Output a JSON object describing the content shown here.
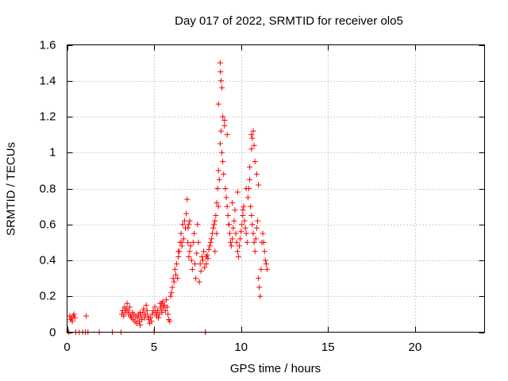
{
  "chart_data": {
    "type": "scatter",
    "title": "Day 017 of 2022, SRMTID for receiver olo5",
    "xlabel": "GPS time / hours",
    "ylabel": "SRMTID / TECUs",
    "xlim": [
      0,
      24
    ],
    "ylim": [
      0,
      1.6
    ],
    "x_ticks": [
      0,
      5,
      10,
      15,
      20
    ],
    "x_tick_labels": [
      "0",
      "5",
      "10",
      "15",
      "20"
    ],
    "y_ticks": [
      0,
      0.2,
      0.4,
      0.6,
      0.8,
      1.0,
      1.2,
      1.4,
      1.6
    ],
    "y_tick_labels": [
      "0",
      "0.2",
      "0.4",
      "0.6",
      "0.8",
      "1",
      "1.2",
      "1.4",
      "1.6"
    ],
    "grid": true,
    "marker": "+",
    "color": "#ff0000",
    "series": [
      {
        "name": "olo5",
        "x": [
          0.15,
          0.2,
          0.25,
          0.3,
          0.35,
          0.4,
          0.45,
          0.1,
          0.5,
          0.7,
          0.9,
          1.05,
          1.1,
          1.2,
          1.85,
          3.1,
          3.15,
          3.2,
          3.25,
          3.3,
          3.35,
          3.4,
          3.45,
          3.5,
          3.55,
          3.6,
          3.65,
          3.7,
          3.75,
          3.8,
          3.85,
          3.9,
          3.95,
          4.0,
          4.05,
          4.1,
          4.15,
          4.2,
          4.25,
          4.3,
          4.35,
          4.4,
          4.45,
          4.5,
          4.55,
          4.6,
          4.65,
          4.7,
          4.75,
          4.8,
          4.85,
          4.9,
          4.95,
          5.0,
          5.05,
          5.1,
          5.15,
          5.2,
          5.25,
          5.3,
          5.35,
          5.4,
          5.45,
          5.5,
          5.55,
          5.6,
          5.65,
          5.7,
          5.75,
          5.8,
          5.85,
          5.9,
          5.95,
          6.0,
          6.05,
          6.1,
          6.15,
          6.2,
          6.25,
          6.3,
          6.35,
          6.4,
          6.45,
          6.5,
          6.55,
          6.6,
          6.65,
          6.7,
          6.75,
          6.8,
          6.85,
          6.9,
          6.95,
          7.0,
          7.05,
          7.1,
          7.15,
          7.2,
          7.25,
          7.3,
          7.35,
          7.4,
          7.45,
          7.5,
          7.55,
          7.6,
          7.65,
          7.7,
          7.75,
          7.8,
          7.85,
          7.9,
          7.95,
          8.0,
          8.05,
          8.1,
          8.15,
          8.2,
          8.25,
          8.3,
          8.35,
          8.4,
          8.45,
          8.5,
          8.55,
          8.6,
          8.65,
          8.7,
          8.75,
          8.8,
          8.85,
          8.9,
          8.95,
          9.0,
          9.05,
          9.1,
          9.15,
          9.2,
          9.25,
          9.3,
          9.35,
          9.4,
          9.45,
          9.5,
          9.55,
          9.6,
          9.65,
          9.7,
          9.75,
          9.8,
          9.85,
          9.9,
          9.95,
          10.0,
          10.05,
          10.1,
          10.15,
          10.2,
          10.25,
          10.3,
          10.35,
          10.4,
          10.45,
          10.5,
          10.55,
          10.6,
          10.65,
          10.7,
          10.75,
          10.8,
          10.85,
          10.9,
          10.95,
          11.0,
          11.05,
          11.1,
          11.15,
          11.2,
          11.25,
          11.3,
          11.35,
          11.4,
          11.45,
          11.5,
          8.8,
          8.82,
          8.85,
          8.9,
          8.7,
          8.95,
          9.05,
          9.2,
          10.6,
          10.7,
          10.65,
          10.75,
          10.5,
          10.8,
          10.9,
          11.0,
          8.5,
          8.6,
          8.7,
          9.3,
          9.5,
          9.8,
          10.1,
          10.3,
          6.95,
          7.0,
          7.05,
          6.4,
          6.6,
          10.6,
          5.4,
          5.45,
          7.95,
          8.0,
          2.6,
          4.2
        ],
        "y": [
          0.09,
          0.07,
          0.08,
          0.06,
          0.09,
          0.1,
          0.08,
          0.0,
          0.0,
          0.0,
          0.0,
          0.0,
          0.09,
          0.0,
          0.0,
          0.0,
          0.1,
          0.12,
          0.09,
          0.14,
          0.11,
          0.13,
          0.16,
          0.12,
          0.1,
          0.14,
          0.09,
          0.08,
          0.11,
          0.07,
          0.1,
          0.06,
          0.09,
          0.05,
          0.08,
          0.1,
          0.06,
          0.04,
          0.09,
          0.07,
          0.11,
          0.13,
          0.08,
          0.1,
          0.15,
          0.12,
          0.09,
          0.07,
          0.05,
          0.08,
          0.06,
          0.1,
          0.12,
          0.0,
          0.14,
          0.11,
          0.09,
          0.12,
          0.08,
          0.1,
          0.16,
          0.13,
          0.11,
          0.17,
          0.14,
          0.15,
          0.12,
          0.18,
          0.14,
          0.1,
          0.07,
          0.06,
          0.2,
          0.22,
          0.25,
          0.3,
          0.28,
          0.35,
          0.32,
          0.38,
          0.3,
          0.42,
          0.45,
          0.5,
          0.55,
          0.48,
          0.6,
          0.52,
          0.62,
          0.58,
          0.66,
          0.74,
          0.5,
          0.42,
          0.45,
          0.48,
          0.4,
          0.35,
          0.5,
          0.55,
          0.38,
          0.3,
          0.44,
          0.6,
          0.5,
          0.28,
          0.38,
          0.34,
          0.42,
          0.4,
          0.45,
          0.36,
          0.0,
          0.38,
          0.43,
          0.41,
          0.46,
          0.48,
          0.5,
          0.52,
          0.55,
          0.58,
          0.6,
          0.45,
          0.65,
          0.72,
          0.8,
          0.9,
          0.85,
          1.05,
          1.12,
          1.0,
          0.95,
          0.88,
          1.18,
          0.8,
          0.75,
          0.7,
          0.65,
          0.6,
          0.55,
          0.5,
          0.48,
          0.52,
          0.58,
          0.62,
          0.68,
          0.55,
          0.5,
          0.45,
          0.42,
          0.48,
          0.52,
          0.56,
          0.6,
          0.65,
          0.7,
          0.62,
          0.58,
          0.55,
          0.5,
          0.75,
          0.8,
          0.85,
          0.7,
          0.65,
          0.6,
          0.55,
          0.5,
          0.45,
          0.52,
          0.58,
          0.62,
          0.3,
          0.25,
          0.2,
          0.35,
          0.5,
          0.55,
          0.5,
          0.45,
          0.4,
          0.38,
          0.35,
          1.5,
          1.45,
          1.4,
          1.36,
          1.27,
          1.2,
          1.15,
          1.1,
          1.1,
          1.12,
          1.08,
          1.04,
          0.92,
          0.95,
          0.88,
          0.82,
          0.62,
          0.55,
          0.7,
          0.6,
          0.72,
          0.78,
          0.68,
          0.8,
          0.58,
          0.6,
          0.62,
          0.45,
          0.5,
          1.02,
          0.14,
          0.16,
          0.0,
          0.42,
          0.0,
          0.11
        ]
      }
    ]
  }
}
